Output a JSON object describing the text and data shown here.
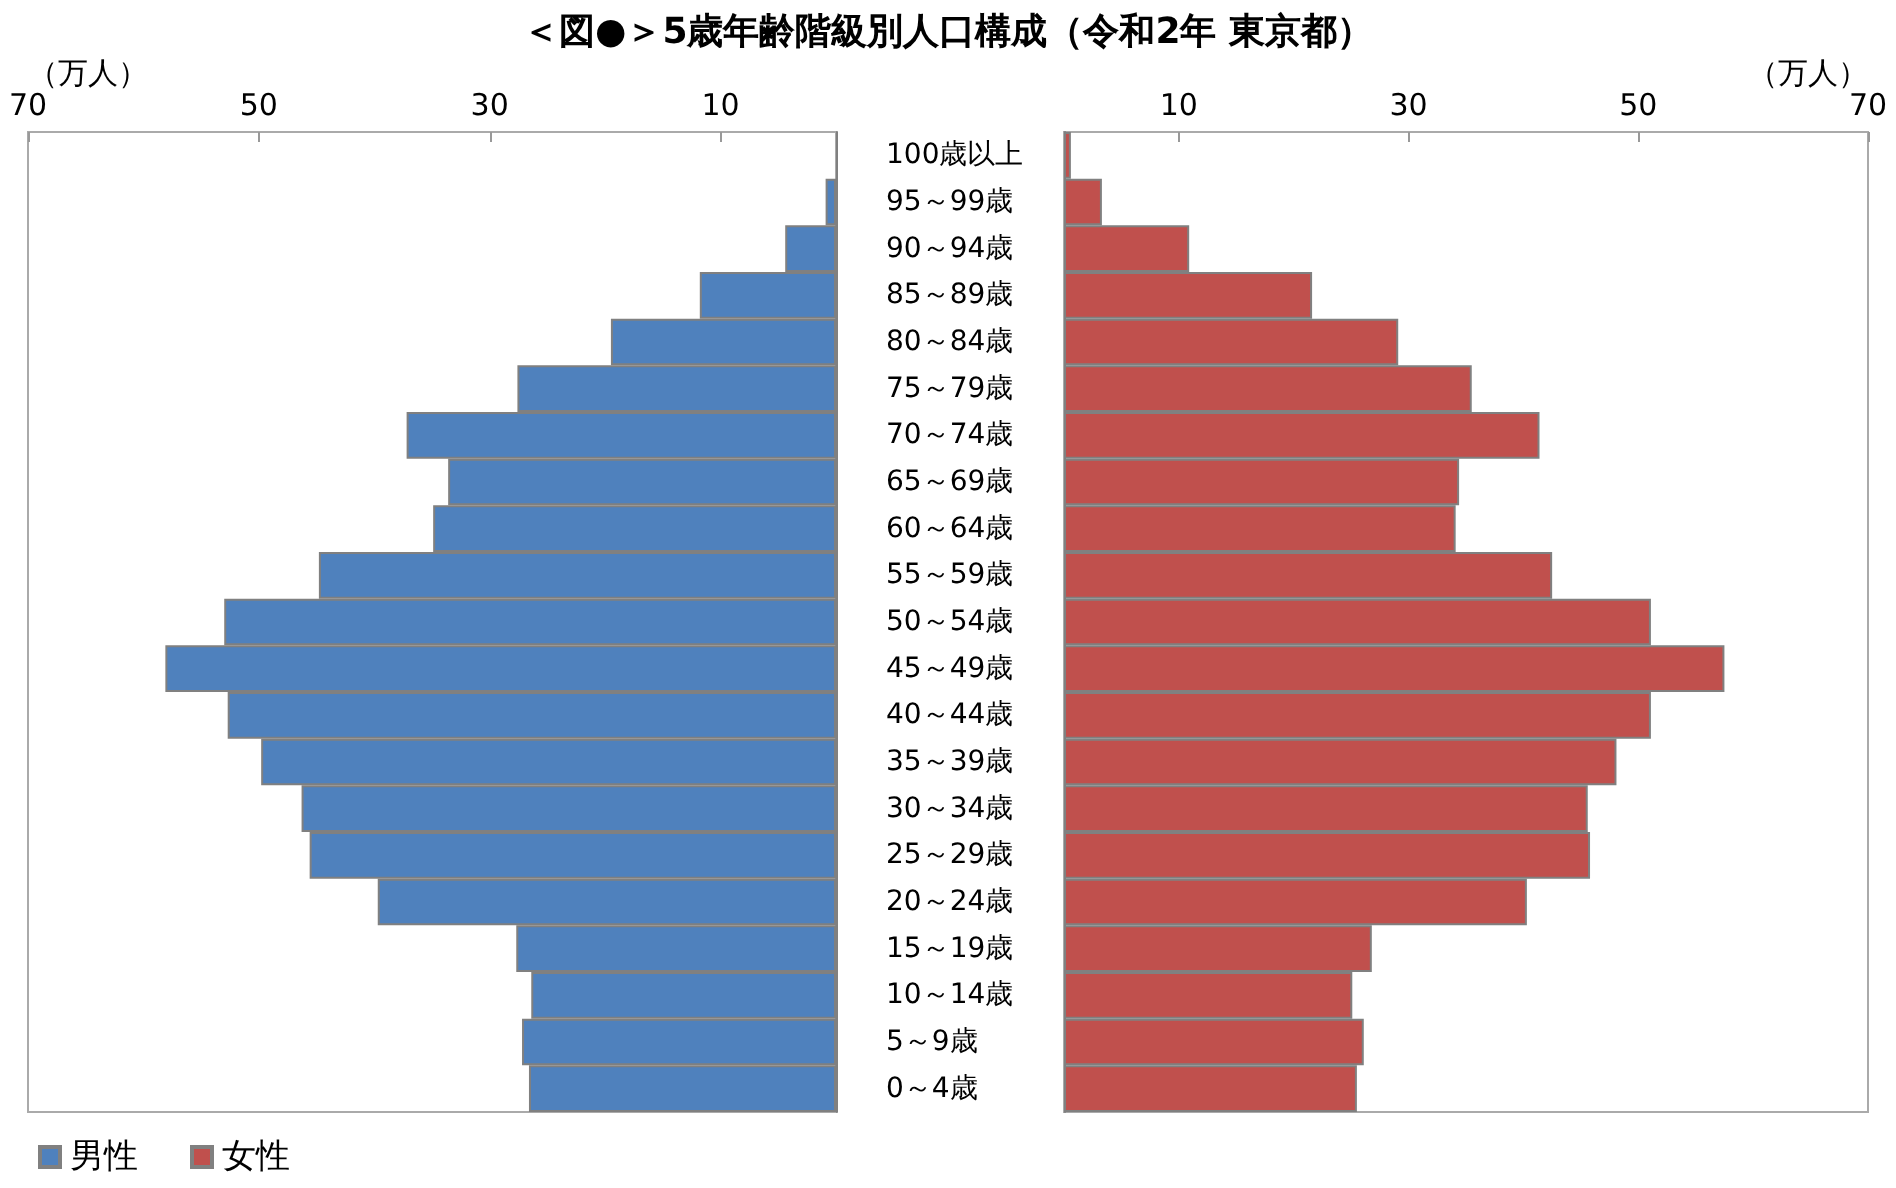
{
  "chart_data": [
    {
      "type": "bar",
      "orientation": "horizontal",
      "title": "＜図●＞5歳年齢階級別人口構成（令和2年 東京都）",
      "xlabel": "（万人）",
      "categories": [
        null,
        null,
        null,
        null,
        null,
        null,
        null,
        null,
        null,
        null,
        null,
        null,
        null,
        null,
        null,
        null,
        null,
        null,
        null,
        null,
        null
      ],
      "series": [
        {
          "name": "男性",
          "color": "#4f81bd",
          "values": [
            0,
            0.9,
            4.4,
            11.8,
            19.5,
            27.6,
            37.2,
            33.6,
            34.9,
            44.8,
            53.0,
            58.1,
            52.7,
            49.8,
            46.3,
            45.6,
            39.7,
            27.7,
            26.4,
            27.2,
            26.6
          ]
        }
      ],
      "xlim": [
        70,
        0
      ],
      "xticks": [
        70,
        50,
        30,
        10
      ],
      "tick_labels": "x",
      "grid": false,
      "legend": "bottom left"
    },
    {
      "type": "bar",
      "orientation": "horizontal",
      "xlabel": "（万人）",
      "categories": [
        "100歳以上",
        "95～99歳",
        "90～94歳",
        "85～89歳",
        "80～84歳",
        "75～79歳",
        "70～74歳",
        "65～69歳",
        "60～64歳",
        "55～59歳",
        "50～54歳",
        "45～49歳",
        "40～44歳",
        "35～39歳",
        "30～34歳",
        "25～29歳",
        "20～24歳",
        "15～19歳",
        "10～14歳",
        "5～9歳",
        "0～4歳"
      ],
      "series": [
        {
          "name": "女性",
          "color": "#c0504d",
          "values": [
            0.6,
            3.3,
            10.9,
            21.6,
            29.1,
            35.5,
            41.4,
            34.4,
            34.1,
            42.5,
            51.1,
            57.5,
            51.1,
            48.1,
            45.6,
            45.8,
            40.3,
            26.8,
            25.1,
            26.1,
            25.5
          ]
        }
      ],
      "xlim": [
        0,
        70
      ],
      "xticks": [
        10,
        30,
        50,
        70
      ],
      "grid": false,
      "legend": "bottom left"
    }
  ]
}
